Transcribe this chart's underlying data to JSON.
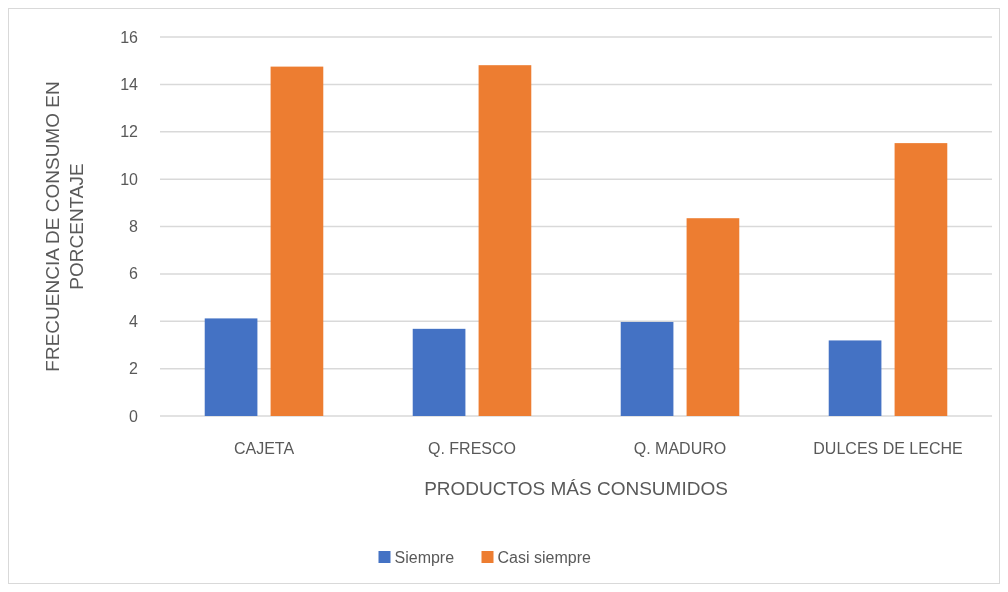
{
  "chart_data": {
    "type": "bar",
    "xlabel": "PRODUCTOS MÁS CONSUMIDOS",
    "ylabel": "FRECUENCIA DE CONSUMO EN PORCENTAJE",
    "categories": [
      "CAJETA",
      "Q. FRESCO",
      "Q. MADURO",
      "DULCES DE LECHE"
    ],
    "series": [
      {
        "name": "Siempre",
        "color": "#4472c4",
        "values": [
          4.12,
          3.68,
          3.97,
          3.19
        ]
      },
      {
        "name": "Casi siempre",
        "color": "#ed7d31",
        "values": [
          14.75,
          14.81,
          8.35,
          11.52
        ]
      }
    ],
    "ylim": [
      0,
      16
    ],
    "yticks": [
      0,
      2,
      4,
      6,
      8,
      10,
      12,
      14,
      16
    ],
    "grid": "y",
    "legend": "bottom"
  }
}
